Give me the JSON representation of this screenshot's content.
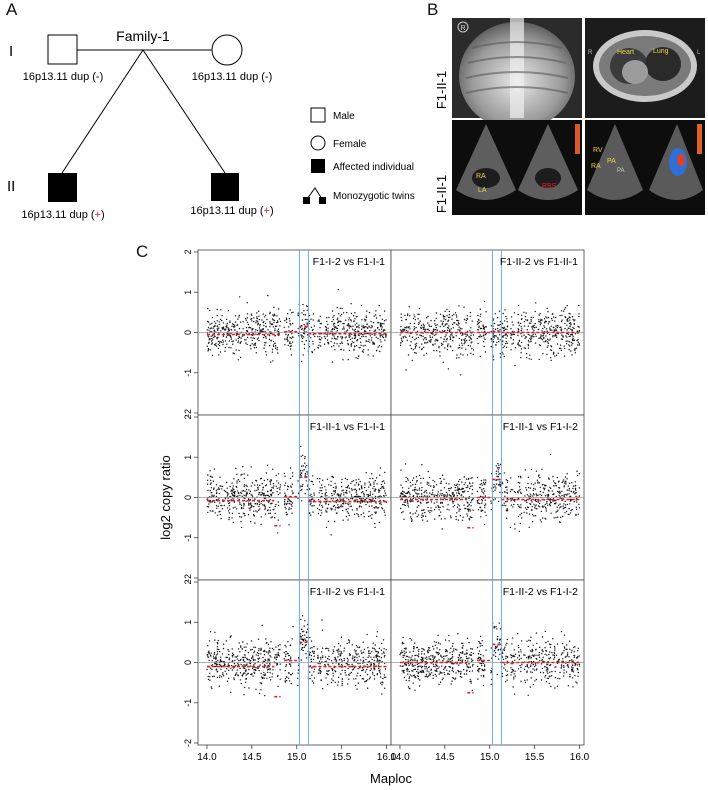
{
  "panels": {
    "a": "A",
    "b": "B",
    "c": "C"
  },
  "pedigree": {
    "family_title": "Family-1",
    "generations": [
      "I",
      "II"
    ],
    "individuals": {
      "father": {
        "label": "16p13.11 dup (",
        "sign": "-",
        "close": ")"
      },
      "mother": {
        "label": "16p13.11 dup (",
        "sign": "-",
        "close": ")"
      },
      "twin1": {
        "label": "16p13.11 dup (",
        "sign": "+",
        "close": ")"
      },
      "twin2": {
        "label": "16p13.11 dup (",
        "sign": "+",
        "close": ")"
      }
    },
    "legend": [
      "Male",
      "Female",
      "Affected individual",
      "Monozygotic twins"
    ]
  },
  "imaging": {
    "row_labels": [
      "F1-II-1",
      "F1-II-1"
    ],
    "xray_marker": "R",
    "ct_labels": [
      "Heart",
      "Lung"
    ],
    "ct_side": [
      "R",
      "L"
    ],
    "echo1_labels": [
      "RA",
      "LA",
      "RBS"
    ],
    "echo2_labels": [
      "RV",
      "PA",
      "RA",
      "PA"
    ]
  },
  "chart_data": {
    "type": "scatter",
    "ylabel": "log2 copy ratio",
    "xlabel": "Maploc",
    "xlim": [
      13.9,
      16.05
    ],
    "ylim": [
      -2.05,
      2.05
    ],
    "xticks": [
      "14.0",
      "14.5",
      "15.0",
      "15.5",
      "16.0"
    ],
    "xtick_values": [
      14.0,
      14.5,
      15.0,
      15.5,
      16.0
    ],
    "yticks": [
      "2",
      "1",
      "0",
      "-1",
      "-2"
    ],
    "ytick_values": [
      2,
      1,
      0,
      -1,
      -2
    ],
    "dup_region": [
      15.03,
      15.13
    ],
    "gaps": [
      [
        14.82,
        14.86
      ],
      [
        14.96,
        15.01
      ],
      [
        15.2,
        15.23
      ],
      [
        15.29,
        15.31
      ],
      [
        15.36,
        15.38
      ]
    ],
    "subplots": [
      {
        "title": "F1-I-2 vs F1-I-1",
        "dup_shift": 0.12,
        "segments": [
          [
            14.0,
            14.82,
            -0.05
          ],
          [
            14.86,
            15.03,
            0.02
          ],
          [
            15.03,
            15.13,
            0.15
          ],
          [
            15.13,
            16.0,
            -0.03
          ]
        ]
      },
      {
        "title": "F1-II-2 vs F1-II-1",
        "dup_shift": 0.0,
        "segments": [
          [
            14.0,
            14.82,
            0.0
          ],
          [
            14.86,
            15.03,
            0.0
          ],
          [
            15.03,
            15.13,
            0.02
          ],
          [
            15.13,
            16.0,
            0.0
          ]
        ]
      },
      {
        "title": "F1-II-1 vs F1-I-1",
        "dup_shift": 0.5,
        "segments": [
          [
            14.0,
            14.75,
            -0.08
          ],
          [
            14.75,
            14.82,
            -0.7
          ],
          [
            14.86,
            15.03,
            0.02
          ],
          [
            15.03,
            15.13,
            0.5
          ],
          [
            15.13,
            16.0,
            -0.1
          ]
        ]
      },
      {
        "title": "F1-II-1 vs F1-I-2",
        "dup_shift": 0.45,
        "segments": [
          [
            14.0,
            14.75,
            -0.05
          ],
          [
            14.75,
            14.82,
            -0.75
          ],
          [
            14.86,
            15.03,
            0.0
          ],
          [
            15.03,
            15.13,
            0.45
          ],
          [
            15.13,
            16.0,
            -0.05
          ]
        ]
      },
      {
        "title": "F1-II-2 vs F1-I-1",
        "dup_shift": 0.5,
        "segments": [
          [
            14.0,
            14.75,
            -0.1
          ],
          [
            14.75,
            14.82,
            -0.85
          ],
          [
            14.86,
            15.03,
            0.05
          ],
          [
            15.03,
            15.13,
            0.5
          ],
          [
            15.13,
            16.0,
            -0.1
          ]
        ]
      },
      {
        "title": "F1-II-2 vs F1-I-2",
        "dup_shift": 0.45,
        "segments": [
          [
            14.0,
            14.75,
            0.0
          ],
          [
            14.75,
            14.82,
            -0.75
          ],
          [
            14.86,
            15.03,
            0.05
          ],
          [
            15.03,
            15.13,
            0.45
          ],
          [
            15.13,
            16.0,
            0.0
          ]
        ]
      }
    ]
  },
  "colors": {
    "positive_sign": "#e0202a",
    "segment": "#e0202a",
    "region": "#6aaee8",
    "points": "#111111"
  }
}
